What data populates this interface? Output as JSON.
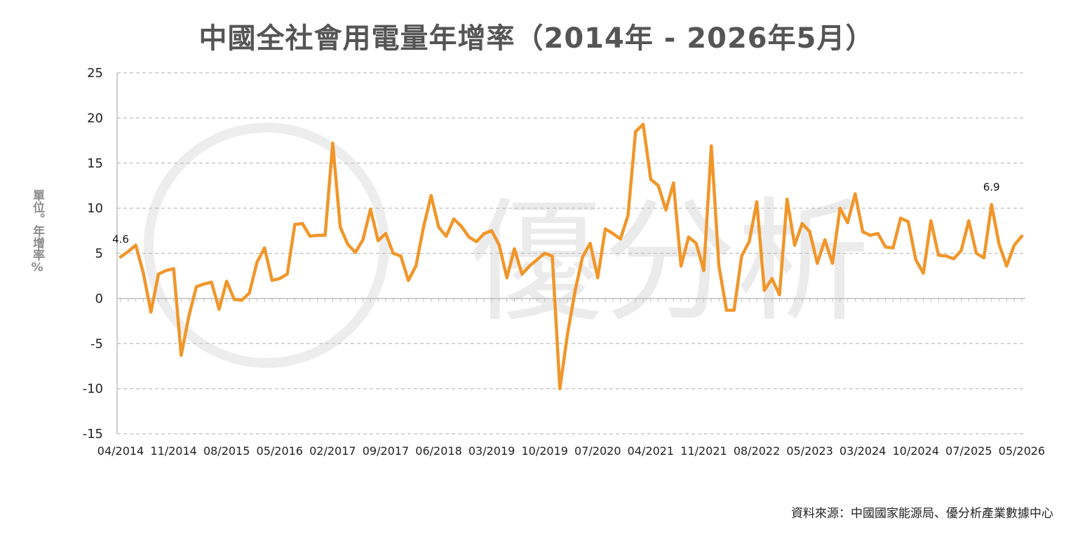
{
  "title": "中國全社會用電量年增率（2014年 - 2026年5月）",
  "y_unit_label": "單位。年增率%",
  "source": "資料來源：中國國家能源局、優分析產業數據中心",
  "watermark": "優分析",
  "colors": {
    "line": "#F0962A",
    "grid": "#bfbfbf",
    "axis": "#bfbfbf",
    "text": "#222222",
    "title": "#555555",
    "watermark": "#ebebeb"
  },
  "chart_data": {
    "type": "line",
    "title": "中國全社會用電量年增率（2014年 - 2026年5月）",
    "xlabel": "",
    "ylabel": "單位。年增率%",
    "ylim": [
      -15,
      25
    ],
    "yticks": [
      25,
      20,
      15,
      10,
      5,
      0,
      -5,
      -10,
      -15
    ],
    "grid": true,
    "x_tick_labels": [
      "04/2014",
      "11/2014",
      "08/2015",
      "05/2016",
      "02/2017",
      "09/2017",
      "06/2018",
      "03/2019",
      "10/2019",
      "07/2020",
      "04/2021",
      "11/2021",
      "08/2022",
      "05/2023",
      "03/2024",
      "10/2024",
      "07/2025",
      "05/2026"
    ],
    "annotations": [
      {
        "index": 0,
        "text": "4.6"
      },
      {
        "index": 115,
        "text": "6.9"
      }
    ],
    "series": [
      {
        "values": [
          4.6,
          5.2,
          5.9,
          2.8,
          -1.5,
          2.7,
          3.1,
          3.3,
          -6.3,
          -2.0,
          1.3,
          1.6,
          1.8,
          -1.2,
          1.9,
          -0.1,
          -0.2,
          0.6,
          4.0,
          5.6,
          2.0,
          2.2,
          2.7,
          8.2,
          8.3,
          6.9,
          7.0,
          7.0,
          17.2,
          7.9,
          6.0,
          5.1,
          6.5,
          9.9,
          6.4,
          7.2,
          5.0,
          4.7,
          2.0,
          3.6,
          7.9,
          11.4,
          7.9,
          6.9,
          8.8,
          8.0,
          6.8,
          6.3,
          7.2,
          7.5,
          5.9,
          2.3,
          5.5,
          2.7,
          3.6,
          4.3,
          5.0,
          4.7,
          -10.0,
          -4.0,
          0.8,
          4.6,
          6.1,
          2.3,
          7.7,
          7.2,
          6.6,
          9.2,
          18.5,
          19.3,
          13.2,
          12.5,
          9.8,
          12.8,
          3.6,
          6.8,
          6.1,
          3.1,
          16.9,
          3.6,
          -1.3,
          -1.3,
          4.7,
          6.3,
          10.7,
          0.9,
          2.2,
          0.4,
          11.0,
          5.9,
          8.3,
          7.4,
          3.9,
          6.5,
          3.9,
          10.0,
          8.4,
          11.6,
          7.4,
          7.0,
          7.2,
          5.7,
          5.6,
          8.9,
          8.5,
          4.3,
          2.8,
          8.6,
          4.8,
          4.7,
          4.4,
          5.3,
          8.6,
          5.0,
          4.5,
          10.4,
          6.0,
          3.6,
          5.9,
          6.9
        ]
      }
    ]
  }
}
